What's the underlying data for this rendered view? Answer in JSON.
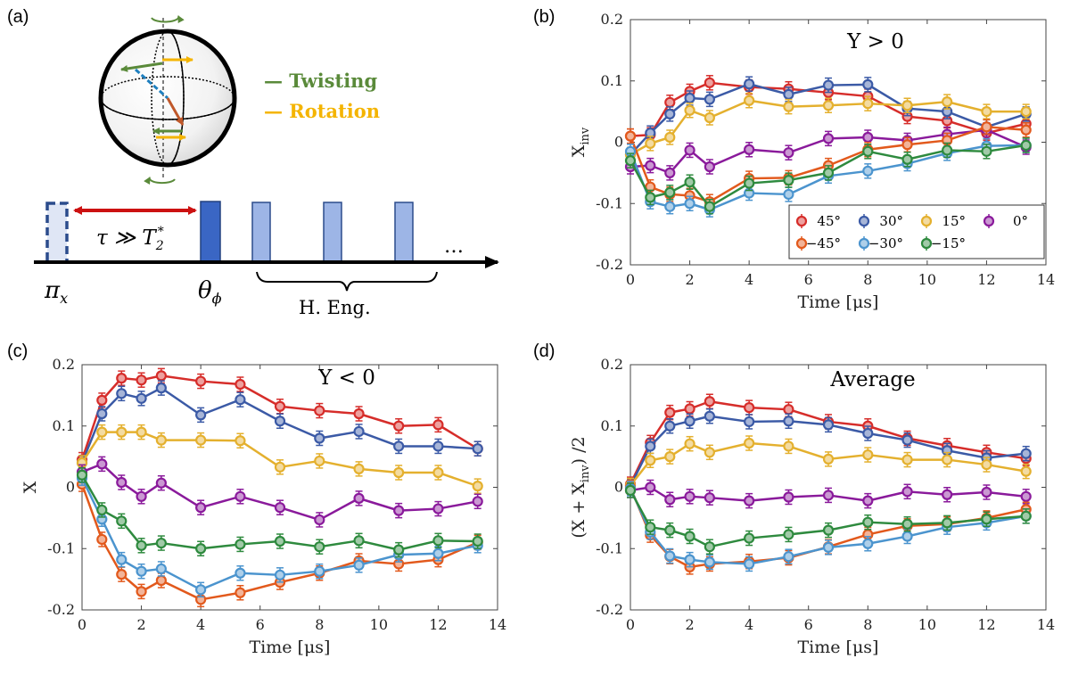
{
  "figure_labels": {
    "a": "(a)",
    "b": "(b)",
    "c": "(c)",
    "d": "(d)"
  },
  "colors": {
    "s45": "#d62d2a",
    "s30": "#3b5aa6",
    "s15": "#e4b02e",
    "s0": "#8a1a9b",
    "sm45": "#e2591c",
    "sm30": "#4b94ce",
    "sm15": "#2e8a3e",
    "twisting": "#5a8a3a",
    "rotation": "#f4b400",
    "pulse_dark": "#3a66c4",
    "pulse_light": "#9db5e6",
    "tau_arrow": "#cc1111"
  },
  "schematic": {
    "legend_twisting": "— Twisting",
    "legend_rotation": "— Rotation",
    "tau_label": "τ ≫ T",
    "tau_sub": "2",
    "tau_sup": "*",
    "pi_label": "π",
    "pi_sub": "x",
    "theta_label": "θ",
    "theta_sub": "ϕ",
    "heng_label": "H. Eng.",
    "ellipsis": "…"
  },
  "chart_data": [
    {
      "id": "b",
      "type": "line",
      "title": "Y > 0",
      "xlabel": "Time [μs]",
      "ylabel": "X",
      "ylabel_sub": "inv",
      "xlim": [
        0,
        14
      ],
      "ylim": [
        -0.2,
        0.2
      ],
      "xticks": [
        0,
        2,
        4,
        6,
        8,
        10,
        12,
        14
      ],
      "yticks": [
        -0.2,
        -0.1,
        0,
        0.1,
        0.2
      ],
      "ytick_labels": [
        "-0.2",
        "-0.1",
        "0",
        "0.1",
        "0.2"
      ],
      "x": [
        0,
        0.67,
        1.33,
        2,
        2.67,
        4,
        5.33,
        6.67,
        8,
        9.33,
        10.67,
        12,
        13.33
      ],
      "series": [
        {
          "name": "45°",
          "color_key": "s45",
          "values": [
            0.01,
            0.012,
            0.065,
            0.083,
            0.097,
            0.09,
            0.087,
            0.081,
            0.075,
            0.042,
            0.035,
            0.015,
            0.03
          ]
        },
        {
          "name": "30°",
          "color_key": "s30",
          "values": [
            -0.02,
            0.015,
            0.046,
            0.072,
            0.07,
            0.095,
            0.078,
            0.093,
            0.094,
            0.055,
            0.05,
            0.025,
            0.046
          ]
        },
        {
          "name": "15°",
          "color_key": "s15",
          "values": [
            -0.02,
            -0.002,
            0.008,
            0.052,
            0.04,
            0.068,
            0.058,
            0.06,
            0.063,
            0.06,
            0.066,
            0.05,
            0.05
          ]
        },
        {
          "name": "0°",
          "color_key": "s0",
          "values": [
            -0.04,
            -0.038,
            -0.05,
            -0.013,
            -0.04,
            -0.012,
            -0.017,
            0.006,
            0.008,
            0.003,
            0.013,
            0.02,
            -0.008
          ]
        },
        {
          "name": "−45°",
          "color_key": "sm45",
          "values": [
            0.01,
            -0.073,
            -0.085,
            -0.087,
            -0.097,
            -0.059,
            -0.058,
            -0.038,
            -0.012,
            -0.004,
            0.003,
            0.025,
            0.02
          ]
        },
        {
          "name": "−30°",
          "color_key": "sm30",
          "values": [
            -0.015,
            -0.097,
            -0.105,
            -0.1,
            -0.11,
            -0.083,
            -0.085,
            -0.055,
            -0.047,
            -0.035,
            -0.018,
            -0.006,
            -0.005
          ]
        },
        {
          "name": "−15°",
          "color_key": "sm15",
          "values": [
            -0.03,
            -0.09,
            -0.082,
            -0.065,
            -0.105,
            -0.067,
            -0.062,
            -0.05,
            -0.015,
            -0.028,
            -0.013,
            -0.015,
            -0.005
          ]
        }
      ],
      "legend_rows": [
        [
          "45°",
          "30°",
          "15°",
          "0°"
        ],
        [
          "−45°",
          "−30°",
          "−15°"
        ]
      ]
    },
    {
      "id": "c",
      "type": "line",
      "title": "Y < 0",
      "xlabel": "Time [μs]",
      "ylabel": "X",
      "xlim": [
        0,
        14
      ],
      "ylim": [
        -0.2,
        0.2
      ],
      "xticks": [
        0,
        2,
        4,
        6,
        8,
        10,
        12,
        14
      ],
      "yticks": [
        -0.2,
        -0.1,
        0,
        0.1,
        0.2
      ],
      "ytick_labels": [
        "-0.2",
        "-0.1",
        "0",
        "0.1",
        "0.2"
      ],
      "x": [
        0,
        0.67,
        1.33,
        2,
        2.67,
        4,
        5.33,
        6.67,
        8,
        9.33,
        10.67,
        12,
        13.33
      ],
      "series": [
        {
          "name": "45°",
          "color_key": "s45",
          "values": [
            0.045,
            0.142,
            0.178,
            0.175,
            0.182,
            0.173,
            0.168,
            0.132,
            0.125,
            0.12,
            0.1,
            0.102,
            0.063
          ]
        },
        {
          "name": "30°",
          "color_key": "s30",
          "values": [
            0.04,
            0.12,
            0.153,
            0.145,
            0.162,
            0.118,
            0.143,
            0.108,
            0.08,
            0.091,
            0.067,
            0.067,
            0.063
          ]
        },
        {
          "name": "15°",
          "color_key": "s15",
          "values": [
            0.04,
            0.09,
            0.09,
            0.09,
            0.077,
            0.077,
            0.076,
            0.033,
            0.043,
            0.03,
            0.024,
            0.024,
            0.002
          ]
        },
        {
          "name": "0°",
          "color_key": "s0",
          "values": [
            0.025,
            0.038,
            0.008,
            -0.015,
            0.007,
            -0.033,
            -0.015,
            -0.033,
            -0.053,
            -0.018,
            -0.038,
            -0.035,
            -0.023
          ]
        },
        {
          "name": "−45°",
          "color_key": "sm45",
          "values": [
            0.005,
            -0.085,
            -0.142,
            -0.17,
            -0.152,
            -0.183,
            -0.172,
            -0.155,
            -0.14,
            -0.12,
            -0.125,
            -0.118,
            -0.09
          ]
        },
        {
          "name": "−30°",
          "color_key": "sm30",
          "values": [
            0.015,
            -0.052,
            -0.118,
            -0.137,
            -0.133,
            -0.167,
            -0.14,
            -0.143,
            -0.137,
            -0.127,
            -0.11,
            -0.108,
            -0.095
          ]
        },
        {
          "name": "−15°",
          "color_key": "sm15",
          "values": [
            0.02,
            -0.037,
            -0.055,
            -0.095,
            -0.091,
            -0.1,
            -0.093,
            -0.088,
            -0.097,
            -0.087,
            -0.102,
            -0.087,
            -0.088
          ]
        }
      ]
    },
    {
      "id": "d",
      "type": "line",
      "title": "Average",
      "xlabel": "Time [μs]",
      "ylabel": "(X + X",
      "ylabel_sub": "inv",
      "ylabel_tail": ") /2",
      "xlim": [
        0,
        14
      ],
      "ylim": [
        -0.2,
        0.2
      ],
      "xticks": [
        0,
        2,
        4,
        6,
        8,
        10,
        12,
        14
      ],
      "yticks": [
        -0.2,
        -0.1,
        0,
        0.1,
        0.2
      ],
      "ytick_labels": [
        "-0.2",
        "-0.1",
        "0",
        "0.1",
        "0.2"
      ],
      "x": [
        0,
        0.67,
        1.33,
        2,
        2.67,
        4,
        5.33,
        6.67,
        8,
        9.33,
        10.67,
        12,
        13.33
      ],
      "series": [
        {
          "name": "45°",
          "color_key": "s45",
          "values": [
            0.005,
            0.073,
            0.122,
            0.128,
            0.14,
            0.13,
            0.127,
            0.107,
            0.1,
            0.08,
            0.068,
            0.057,
            0.047
          ]
        },
        {
          "name": "30°",
          "color_key": "s30",
          "values": [
            0.002,
            0.067,
            0.1,
            0.108,
            0.116,
            0.107,
            0.108,
            0.102,
            0.088,
            0.077,
            0.06,
            0.048,
            0.055
          ]
        },
        {
          "name": "15°",
          "color_key": "s15",
          "values": [
            0.003,
            0.044,
            0.05,
            0.071,
            0.057,
            0.072,
            0.067,
            0.046,
            0.053,
            0.045,
            0.045,
            0.037,
            0.026
          ]
        },
        {
          "name": "0°",
          "color_key": "s0",
          "values": [
            -0.005,
            0.0,
            -0.02,
            -0.015,
            -0.017,
            -0.022,
            -0.016,
            -0.013,
            -0.022,
            -0.007,
            -0.012,
            -0.008,
            -0.015
          ]
        },
        {
          "name": "−45°",
          "color_key": "sm45",
          "values": [
            0.0,
            -0.078,
            -0.113,
            -0.13,
            -0.125,
            -0.121,
            -0.115,
            -0.097,
            -0.077,
            -0.063,
            -0.06,
            -0.05,
            -0.036
          ]
        },
        {
          "name": "−30°",
          "color_key": "sm30",
          "values": [
            -0.002,
            -0.073,
            -0.112,
            -0.118,
            -0.122,
            -0.125,
            -0.113,
            -0.098,
            -0.092,
            -0.08,
            -0.065,
            -0.058,
            -0.047
          ]
        },
        {
          "name": "−15°",
          "color_key": "sm15",
          "values": [
            -0.005,
            -0.065,
            -0.07,
            -0.08,
            -0.097,
            -0.083,
            -0.077,
            -0.07,
            -0.057,
            -0.06,
            -0.058,
            -0.052,
            -0.047
          ]
        }
      ]
    }
  ]
}
